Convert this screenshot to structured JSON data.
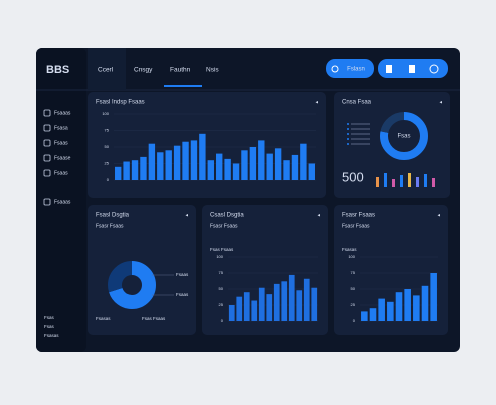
{
  "header": {
    "logo": "BBS",
    "tabs": [
      "Ccerl",
      "Cnsgy",
      "Fauthn",
      "Nsis"
    ],
    "button": "Fslasn"
  },
  "sidebar": {
    "items": [
      "Fsaaas",
      "Fsasa",
      "Fsaas",
      "Fsaase",
      "Fsaas",
      "Fsaaas"
    ],
    "footer": [
      "Fsas",
      "Fsas",
      "Fsasas"
    ]
  },
  "panels": [
    {
      "title": "Fsasl Indsp Fsaas",
      "chart": {
        "type": "bar",
        "color": "#1f7cf2",
        "values": [
          20,
          28,
          30,
          35,
          55,
          42,
          45,
          52,
          58,
          60,
          70,
          30,
          40,
          32,
          25,
          45,
          50,
          60,
          40,
          48,
          30,
          38,
          55,
          25
        ],
        "ylim": [
          0,
          100
        ],
        "yticks": [
          0,
          25,
          50,
          75,
          100
        ]
      }
    },
    {
      "title": "Cnsa Fsaa",
      "chart": {
        "type": "donut",
        "values": [
          78,
          22
        ],
        "colors": [
          "#1f7cf2",
          "#1a3a66"
        ],
        "center": "Fsas",
        "big": "500",
        "bars": [
          10,
          14,
          8,
          12,
          14,
          10,
          13,
          9
        ],
        "bar_colors": [
          "#e8934a",
          "#1f7cf2",
          "#d05aa8",
          "#1f7cf2",
          "#e8b84a",
          "#6a7cf2",
          "#1f7cf2",
          "#d05aa8"
        ]
      }
    },
    {
      "title": "Fsasl Dsgtia",
      "subtitle": "Fsasr Fsaas",
      "chart": {
        "type": "pie",
        "values": [
          70,
          30
        ],
        "colors": [
          "#1f7cf2",
          "#0f3a78"
        ],
        "legend": [
          "Fsaas",
          "Fsaas"
        ],
        "foot": [
          "Fsasas",
          "Fsas Fsaas"
        ]
      }
    },
    {
      "title": "Csasl Dsgtia",
      "subtitle": "Fsasr Fsaas",
      "chart": {
        "type": "bar",
        "color": "#1f6fe0",
        "label": "Fsas Fsaas",
        "values": [
          25,
          38,
          45,
          32,
          52,
          42,
          58,
          62,
          72,
          48,
          66,
          52
        ],
        "ylim": [
          0,
          100
        ],
        "yticks": [
          0,
          25,
          50,
          75,
          100
        ]
      }
    },
    {
      "title": "Fsasr Fsaas",
      "subtitle": "Fsasr Fsaas",
      "chart": {
        "type": "bar",
        "color": "#1f7cf2",
        "label": "Fsasas",
        "values": [
          15,
          20,
          35,
          30,
          45,
          50,
          40,
          55,
          75
        ],
        "ylim": [
          0,
          100
        ],
        "yticks": [
          0,
          25,
          50,
          75,
          100
        ]
      }
    }
  ]
}
